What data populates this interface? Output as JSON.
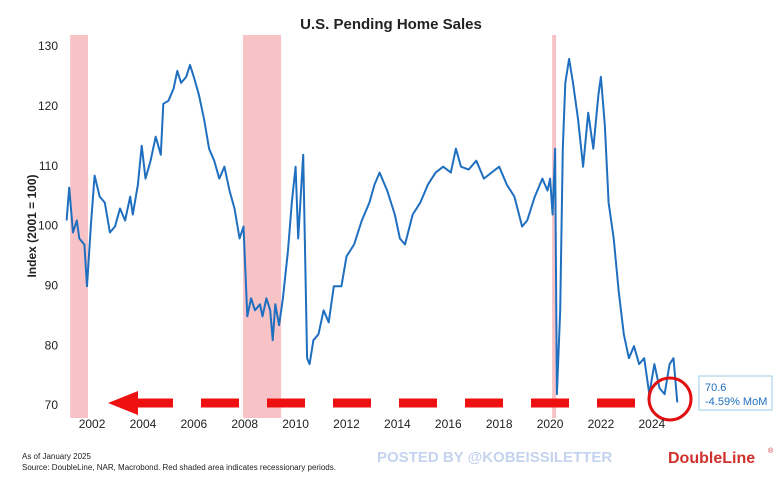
{
  "chart_data": {
    "type": "line",
    "title": "U.S. Pending Home Sales",
    "y_label": "Index (2001 = 100)",
    "x": [
      2001.0,
      2001.1,
      2001.25,
      2001.4,
      2001.5,
      2001.7,
      2001.8,
      2001.95,
      2002.1,
      2002.3,
      2002.5,
      2002.7,
      2002.9,
      2003.1,
      2003.3,
      2003.5,
      2003.6,
      2003.8,
      2003.95,
      2004.1,
      2004.3,
      2004.5,
      2004.7,
      2004.8,
      2005.0,
      2005.2,
      2005.35,
      2005.5,
      2005.7,
      2005.85,
      2006.0,
      2006.2,
      2006.4,
      2006.6,
      2006.8,
      2007.0,
      2007.2,
      2007.4,
      2007.6,
      2007.8,
      2007.95,
      2008.1,
      2008.25,
      2008.4,
      2008.6,
      2008.7,
      2008.85,
      2009.0,
      2009.1,
      2009.2,
      2009.35,
      2009.5,
      2009.7,
      2009.85,
      2010.0,
      2010.1,
      2010.3,
      2010.45,
      2010.55,
      2010.7,
      2010.9,
      2011.1,
      2011.3,
      2011.5,
      2011.8,
      2012.0,
      2012.3,
      2012.6,
      2012.9,
      2013.1,
      2013.3,
      2013.6,
      2013.9,
      2014.1,
      2014.3,
      2014.6,
      2014.9,
      2015.2,
      2015.5,
      2015.8,
      2016.1,
      2016.3,
      2016.5,
      2016.8,
      2017.1,
      2017.4,
      2017.7,
      2018.0,
      2018.3,
      2018.6,
      2018.9,
      2019.1,
      2019.4,
      2019.7,
      2019.9,
      2020.0,
      2020.1,
      2020.2,
      2020.27,
      2020.4,
      2020.5,
      2020.6,
      2020.75,
      2020.9,
      2021.1,
      2021.3,
      2021.5,
      2021.7,
      2021.9,
      2022.0,
      2022.15,
      2022.3,
      2022.5,
      2022.7,
      2022.9,
      2023.1,
      2023.3,
      2023.5,
      2023.7,
      2023.9,
      2024.1,
      2024.3,
      2024.5,
      2024.7,
      2024.85,
      2025.0
    ],
    "series": [
      {
        "name": "U.S. Pending Home Sales",
        "color": "#1f6fc0",
        "values": [
          101,
          106.5,
          99,
          101,
          98,
          97,
          90,
          100,
          108.5,
          105,
          104,
          99,
          100,
          103,
          101,
          105,
          102,
          107,
          113.5,
          108,
          111,
          115,
          112,
          120.5,
          121,
          123,
          126,
          124,
          125,
          127,
          125,
          122,
          118,
          113,
          111,
          108,
          110,
          106,
          103,
          98,
          100,
          85,
          88,
          86,
          87,
          85,
          88,
          86,
          81,
          87,
          83.5,
          88,
          96,
          104,
          110,
          98,
          112,
          78,
          77,
          81,
          82,
          86,
          84,
          90,
          90,
          95,
          97,
          101,
          104,
          107,
          109,
          106,
          102,
          98,
          97,
          102,
          104,
          107,
          109,
          110,
          109,
          113,
          110,
          109.5,
          111,
          108,
          109,
          110,
          107,
          105,
          100,
          101,
          105,
          108,
          106,
          108,
          102,
          113,
          72,
          86,
          113,
          124,
          128,
          124,
          118,
          110,
          119,
          113,
          122,
          125,
          117,
          104,
          98,
          89,
          82,
          78,
          80,
          77,
          78,
          72,
          77,
          73,
          72,
          77,
          78,
          70.6
        ]
      }
    ],
    "recessions": [
      [
        2001.14,
        2001.84
      ],
      [
        2007.93,
        2009.43
      ],
      [
        2020.08,
        2020.24
      ]
    ],
    "xlim": [
      2000.74,
      2025.5
    ],
    "xticks": [
      2002,
      2004,
      2006,
      2008,
      2010,
      2012,
      2014,
      2016,
      2018,
      2020,
      2022,
      2024
    ],
    "ylim": [
      68,
      132
    ],
    "yticks": [
      70,
      80,
      90,
      100,
      110,
      120,
      130
    ],
    "annotation": {
      "value": 70.6,
      "change": "-4.59% MoM"
    },
    "as_of": "As of January 2025",
    "source": "Source: DoubleLine, NAR, Macrobond. Red shaded area indicates recessionary periods.",
    "watermark": "POSTED BY @KOBEISSILETTER",
    "logo": "DoubleLine"
  }
}
